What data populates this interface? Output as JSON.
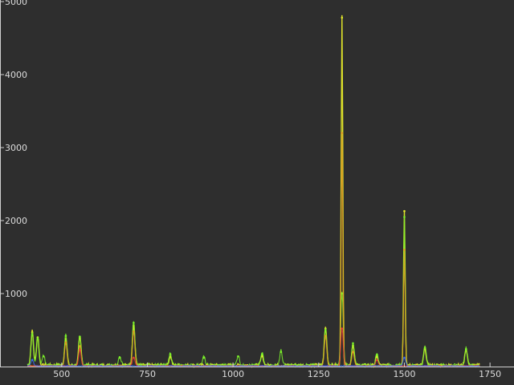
{
  "chart_data": {
    "type": "line",
    "title": "",
    "xlabel": "",
    "ylabel": "",
    "xlim": [
      320,
      1820
    ],
    "ylim": [
      0,
      5000
    ],
    "x_ticks": [
      "500",
      "750",
      "1000",
      "1250",
      "1500",
      "1750"
    ],
    "y_ticks": [
      "1000",
      "2000",
      "3000",
      "4000",
      "5000"
    ],
    "grid": false,
    "background": "#2e2e2e",
    "colors": {
      "yellow": "#e6ea2a",
      "green": "#7cf52a",
      "orange": "#e39a20",
      "red": "#e53a3a",
      "blue": "#3a6cf0"
    },
    "baseline_noise": 40,
    "series": [
      {
        "color": "yellow",
        "peaks": [
          {
            "x": 414,
            "y": 470
          },
          {
            "x": 430,
            "y": 400
          },
          {
            "x": 512,
            "y": 380
          },
          {
            "x": 553,
            "y": 390
          },
          {
            "x": 710,
            "y": 560
          },
          {
            "x": 817,
            "y": 130
          },
          {
            "x": 1085,
            "y": 140
          },
          {
            "x": 1270,
            "y": 520
          },
          {
            "x": 1318,
            "y": 4780
          },
          {
            "x": 1350,
            "y": 290
          },
          {
            "x": 1420,
            "y": 130
          },
          {
            "x": 1500,
            "y": 2130
          },
          {
            "x": 1560,
            "y": 240
          },
          {
            "x": 1680,
            "y": 230
          }
        ]
      },
      {
        "color": "green",
        "peaks": [
          {
            "x": 414,
            "y": 440
          },
          {
            "x": 430,
            "y": 380
          },
          {
            "x": 447,
            "y": 140
          },
          {
            "x": 512,
            "y": 420
          },
          {
            "x": 553,
            "y": 410
          },
          {
            "x": 670,
            "y": 120
          },
          {
            "x": 710,
            "y": 600
          },
          {
            "x": 817,
            "y": 170
          },
          {
            "x": 915,
            "y": 120
          },
          {
            "x": 1015,
            "y": 140
          },
          {
            "x": 1085,
            "y": 170
          },
          {
            "x": 1140,
            "y": 200
          },
          {
            "x": 1270,
            "y": 500
          },
          {
            "x": 1318,
            "y": 1000
          },
          {
            "x": 1350,
            "y": 320
          },
          {
            "x": 1420,
            "y": 160
          },
          {
            "x": 1500,
            "y": 2050
          },
          {
            "x": 1560,
            "y": 260
          },
          {
            "x": 1680,
            "y": 240
          }
        ]
      },
      {
        "color": "orange",
        "peaks": [
          {
            "x": 512,
            "y": 330
          },
          {
            "x": 553,
            "y": 280
          },
          {
            "x": 710,
            "y": 480
          },
          {
            "x": 1270,
            "y": 420
          },
          {
            "x": 1318,
            "y": 3200
          },
          {
            "x": 1350,
            "y": 200
          },
          {
            "x": 1500,
            "y": 1600
          }
        ]
      },
      {
        "color": "red",
        "peaks": [
          {
            "x": 553,
            "y": 230
          },
          {
            "x": 710,
            "y": 120
          },
          {
            "x": 1318,
            "y": 520
          },
          {
            "x": 1420,
            "y": 90
          }
        ]
      },
      {
        "color": "blue",
        "peaks": [
          {
            "x": 414,
            "y": 90
          },
          {
            "x": 1500,
            "y": 120
          }
        ]
      }
    ]
  }
}
